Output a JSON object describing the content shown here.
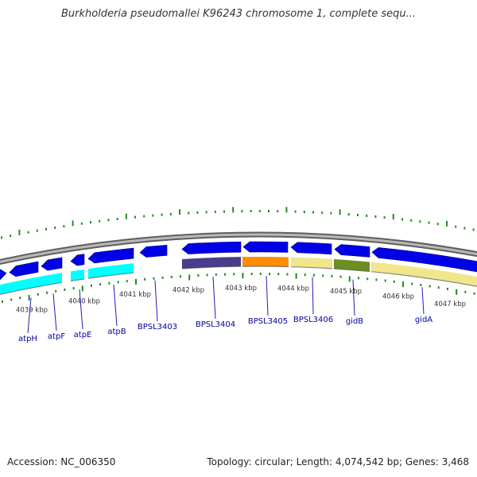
{
  "title": "Burkholderia pseudomallei K96243 chromosome 1, complete sequ...",
  "footer": {
    "accession": "Accession: NC_006350",
    "summary": "Topology: circular; Length: 4,074,542 bp; Genes: 3,468"
  },
  "colors": {
    "backbone": "#8a8a8a",
    "gene_forward": "#0000e6",
    "cds_cyan": "#00ffff",
    "cds_dark": "#483d8b",
    "cds_orange": "#ff8c00",
    "cds_khaki": "#f0e68c",
    "cds_olive": "#6b8e23",
    "tick": "#228b22",
    "label": "#0000a0"
  },
  "scale_labels": [
    "4039 kbp",
    "4040 kbp",
    "4041 kbp",
    "4042 kbp",
    "4043 kbp",
    "4044 kbp",
    "4045 kbp",
    "4046 kbp",
    "4047 kbp"
  ],
  "genes": [
    {
      "name": "atpH"
    },
    {
      "name": "atpF"
    },
    {
      "name": "atpE"
    },
    {
      "name": "atpB"
    },
    {
      "name": "BPSL3403"
    },
    {
      "name": "BPSL3404"
    },
    {
      "name": "BPSL3405"
    },
    {
      "name": "BPSL3406"
    },
    {
      "name": "gidB"
    },
    {
      "name": "gidA"
    }
  ]
}
